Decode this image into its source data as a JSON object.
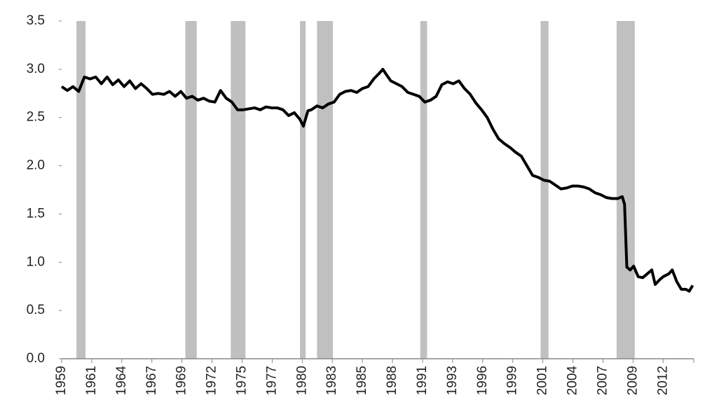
{
  "chart_data": {
    "type": "line",
    "x": [
      1959.0,
      1959.5,
      1960.0,
      1960.5,
      1961.0,
      1961.5,
      1962.0,
      1962.5,
      1963.0,
      1963.5,
      1964.0,
      1964.5,
      1965.0,
      1965.5,
      1966.0,
      1966.5,
      1967.0,
      1967.5,
      1968.0,
      1968.5,
      1969.0,
      1969.5,
      1970.0,
      1970.5,
      1971.0,
      1971.5,
      1972.0,
      1972.5,
      1973.0,
      1973.5,
      1974.0,
      1974.5,
      1975.0,
      1975.5,
      1976.0,
      1976.5,
      1977.0,
      1977.5,
      1978.0,
      1978.5,
      1979.0,
      1979.5,
      1980.0,
      1980.3,
      1980.7,
      1981.0,
      1981.5,
      1982.0,
      1982.5,
      1983.0,
      1983.5,
      1984.0,
      1984.5,
      1985.0,
      1985.5,
      1986.0,
      1986.5,
      1987.0,
      1987.3,
      1987.7,
      1988.0,
      1988.5,
      1989.0,
      1989.5,
      1990.0,
      1990.5,
      1991.0,
      1991.5,
      1992.0,
      1992.5,
      1993.0,
      1993.5,
      1994.0,
      1994.5,
      1995.0,
      1995.5,
      1996.0,
      1996.5,
      1997.0,
      1997.5,
      1998.0,
      1998.5,
      1999.0,
      1999.5,
      2000.0,
      2000.5,
      2001.0,
      2001.5,
      2002.0,
      2002.5,
      2003.0,
      2003.5,
      2004.0,
      2004.5,
      2005.0,
      2005.5,
      2006.0,
      2006.5,
      2007.0,
      2007.5,
      2008.0,
      2008.4,
      2008.6,
      2008.8,
      2009.1,
      2009.4,
      2009.8,
      2010.2,
      2010.6,
      2011.0,
      2011.3,
      2011.7,
      2012.0,
      2012.5,
      2012.8,
      2013.2,
      2013.6,
      2014.0,
      2014.3,
      2014.6
    ],
    "series": [
      {
        "color": "#000000",
        "values": [
          2.82,
          2.78,
          2.82,
          2.77,
          2.92,
          2.9,
          2.92,
          2.85,
          2.92,
          2.84,
          2.89,
          2.82,
          2.88,
          2.8,
          2.85,
          2.8,
          2.74,
          2.75,
          2.74,
          2.77,
          2.72,
          2.77,
          2.7,
          2.72,
          2.68,
          2.7,
          2.67,
          2.66,
          2.78,
          2.7,
          2.66,
          2.58,
          2.58,
          2.59,
          2.6,
          2.58,
          2.61,
          2.6,
          2.6,
          2.58,
          2.52,
          2.55,
          2.48,
          2.41,
          2.57,
          2.58,
          2.62,
          2.6,
          2.64,
          2.66,
          2.74,
          2.77,
          2.78,
          2.76,
          2.8,
          2.82,
          2.9,
          2.96,
          3.0,
          2.93,
          2.88,
          2.85,
          2.82,
          2.76,
          2.74,
          2.72,
          2.66,
          2.68,
          2.72,
          2.84,
          2.87,
          2.85,
          2.88,
          2.8,
          2.74,
          2.65,
          2.58,
          2.5,
          2.38,
          2.28,
          2.23,
          2.19,
          2.14,
          2.1,
          2.0,
          1.9,
          1.88,
          1.85,
          1.84,
          1.8,
          1.76,
          1.77,
          1.79,
          1.79,
          1.78,
          1.76,
          1.72,
          1.7,
          1.67,
          1.66,
          1.66,
          1.68,
          1.6,
          0.95,
          0.92,
          0.96,
          0.85,
          0.84,
          0.88,
          0.92,
          0.77,
          0.82,
          0.85,
          0.88,
          0.92,
          0.8,
          0.72,
          0.72,
          0.7,
          0.76
        ]
      }
    ],
    "shaded_periods": [
      [
        1960.3,
        1961.1
      ],
      [
        1969.9,
        1970.9
      ],
      [
        1973.9,
        1975.2
      ],
      [
        1980.0,
        1980.5
      ],
      [
        1981.5,
        1982.9
      ],
      [
        1990.6,
        1991.2
      ],
      [
        2001.2,
        2001.9
      ],
      [
        2007.9,
        2009.5
      ]
    ],
    "shade_color": "#c0c0c0",
    "xlim": [
      1959,
      2014.7
    ],
    "xticks": [
      1959,
      {
        "value": 1961.65,
        "label": "1961"
      },
      {
        "value": 1964.3,
        "label": "1964"
      },
      {
        "value": 1966.95,
        "label": "1967"
      },
      {
        "value": 1969.6,
        "label": "1969"
      },
      {
        "value": 1972.25,
        "label": "1972"
      },
      {
        "value": 1974.9,
        "label": "1975"
      },
      {
        "value": 1977.55,
        "label": "1977"
      },
      {
        "value": 1980.2,
        "label": "1980"
      },
      {
        "value": 1982.85,
        "label": "1983"
      },
      {
        "value": 1985.5,
        "label": "1985"
      },
      {
        "value": 1988.15,
        "label": "1988"
      },
      {
        "value": 1990.8,
        "label": "1991"
      },
      {
        "value": 1993.45,
        "label": "1993"
      },
      {
        "value": 1996.1,
        "label": "1996"
      },
      {
        "value": 1998.75,
        "label": "1999"
      },
      {
        "value": 2001.4,
        "label": "2001"
      },
      {
        "value": 2004.05,
        "label": "2004"
      },
      {
        "value": 2006.7,
        "label": "2007"
      },
      {
        "value": 2009.35,
        "label": "2009"
      },
      2012
    ],
    "ylim": [
      0,
      3.5
    ],
    "yticks": [
      {
        "value": 0,
        "label": "0.0"
      },
      0.5,
      {
        "value": 1,
        "label": "1.0"
      },
      1.5,
      {
        "value": 2,
        "label": "2.0"
      },
      2.5,
      {
        "value": 3,
        "label": "3.0"
      },
      3.5
    ],
    "grid": false
  }
}
